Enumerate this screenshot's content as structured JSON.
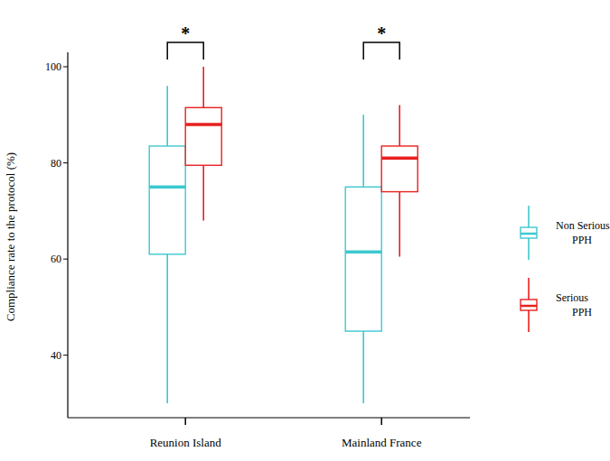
{
  "chart_data": {
    "type": "box",
    "y_label": "Compliance rate to the protocol (%)",
    "categories": [
      "Reunion Island",
      "Mainland France"
    ],
    "series": [
      {
        "name": "Non Serious PPH",
        "color": "#3cc8d0",
        "min": [
          30,
          30
        ],
        "q1": [
          61,
          45
        ],
        "median": [
          75,
          61.5
        ],
        "q3": [
          83.5,
          75
        ],
        "max": [
          96,
          90
        ]
      },
      {
        "name": "Serious PPH",
        "color": "#e8201f",
        "min": [
          68,
          60.5
        ],
        "q1": [
          79.5,
          74
        ],
        "median": [
          88,
          81
        ],
        "q3": [
          91.5,
          83.5
        ],
        "max": [
          100,
          92
        ]
      }
    ],
    "annotations": [
      "*",
      "*"
    ],
    "ylim": [
      27,
      103
    ],
    "yticks": [
      40,
      60,
      80,
      100
    ],
    "grid": false,
    "legend": "right"
  }
}
